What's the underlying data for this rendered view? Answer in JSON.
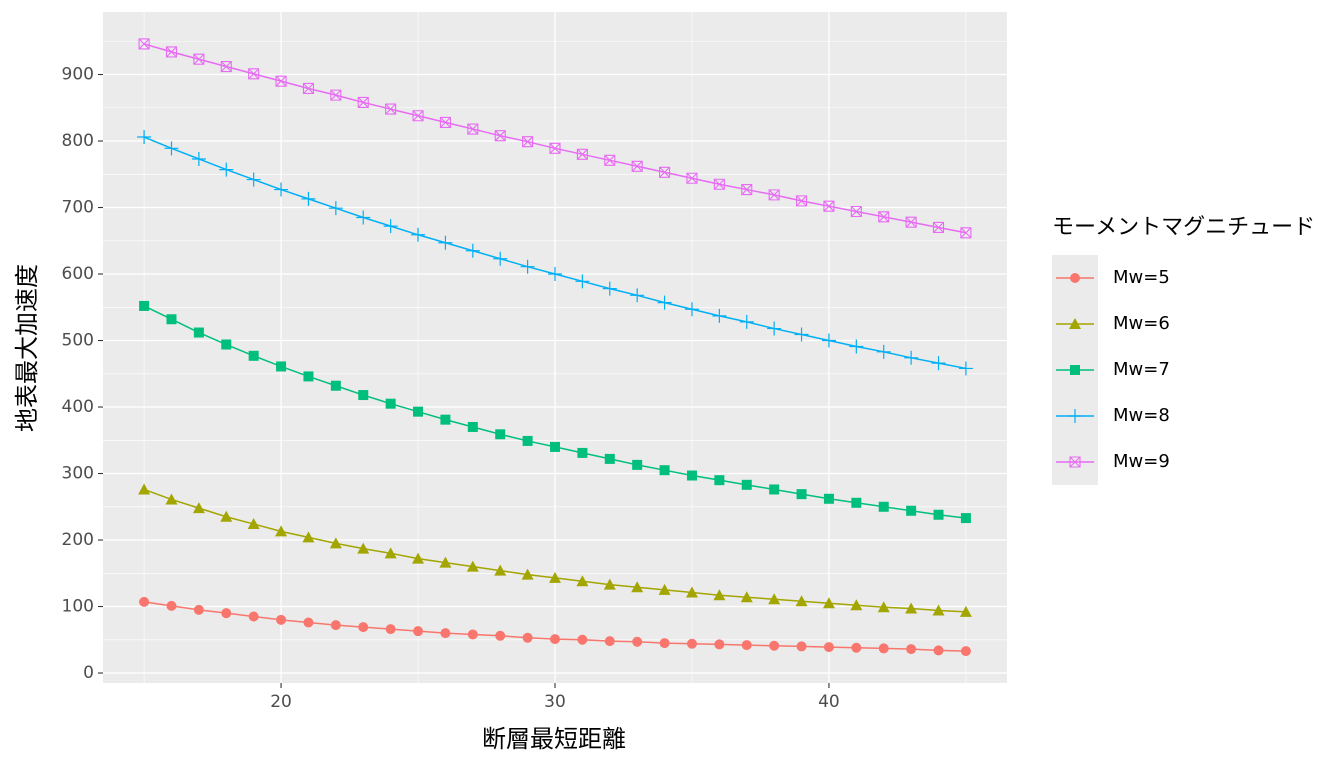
{
  "chart_data": {
    "type": "line",
    "x_label": "断層最短距離",
    "y_label": "地表最大加速度",
    "legend_title": "モーメントマグニチュード",
    "legend": "right",
    "grid": true,
    "x": [
      15,
      16,
      17,
      18,
      19,
      20,
      21,
      22,
      23,
      24,
      25,
      26,
      27,
      28,
      29,
      30,
      31,
      32,
      33,
      34,
      35,
      36,
      37,
      38,
      39,
      40,
      41,
      42,
      43,
      44,
      45
    ],
    "xlim": [
      13.5,
      46.5
    ],
    "xticks": [
      20,
      30,
      40
    ],
    "ylim": [
      -15,
      994
    ],
    "yticks": [
      0,
      100,
      200,
      300,
      400,
      500,
      600,
      700,
      800,
      900
    ],
    "series": [
      {
        "name": "Mw=5",
        "color": "#F8766D",
        "shape": "circle",
        "values": [
          107,
          101,
          95,
          90,
          85,
          80,
          76,
          72,
          69,
          66,
          63,
          60,
          58,
          56,
          53,
          51,
          50,
          48,
          47,
          45,
          44,
          43,
          42,
          41,
          40,
          39,
          38,
          37,
          36,
          34,
          33
        ]
      },
      {
        "name": "Mw=6",
        "color": "#A3A500",
        "shape": "triangle",
        "values": [
          276,
          261,
          248,
          235,
          224,
          213,
          204,
          195,
          187,
          180,
          172,
          166,
          160,
          154,
          148,
          143,
          138,
          133,
          129,
          125,
          121,
          117,
          114,
          111,
          108,
          105,
          102,
          99,
          97,
          94,
          92
        ]
      },
      {
        "name": "Mw=7",
        "color": "#00BF7D",
        "shape": "square",
        "values": [
          552,
          532,
          512,
          494,
          477,
          461,
          446,
          432,
          418,
          405,
          393,
          381,
          370,
          359,
          349,
          340,
          331,
          322,
          313,
          305,
          297,
          290,
          283,
          276,
          269,
          262,
          256,
          250,
          244,
          238,
          233
        ]
      },
      {
        "name": "Mw=8",
        "color": "#00B0F6",
        "shape": "plus",
        "values": [
          806,
          789,
          773,
          757,
          742,
          727,
          713,
          699,
          685,
          672,
          659,
          647,
          635,
          623,
          611,
          600,
          589,
          578,
          568,
          557,
          547,
          537,
          528,
          518,
          509,
          500,
          491,
          483,
          474,
          466,
          458
        ]
      },
      {
        "name": "Mw=9",
        "color": "#E76BF3",
        "shape": "boxcross",
        "values": [
          946,
          934,
          923,
          912,
          901,
          890,
          879,
          869,
          858,
          848,
          838,
          828,
          818,
          808,
          799,
          789,
          780,
          771,
          762,
          753,
          744,
          735,
          727,
          719,
          710,
          702,
          694,
          686,
          678,
          670,
          662
        ]
      }
    ]
  }
}
